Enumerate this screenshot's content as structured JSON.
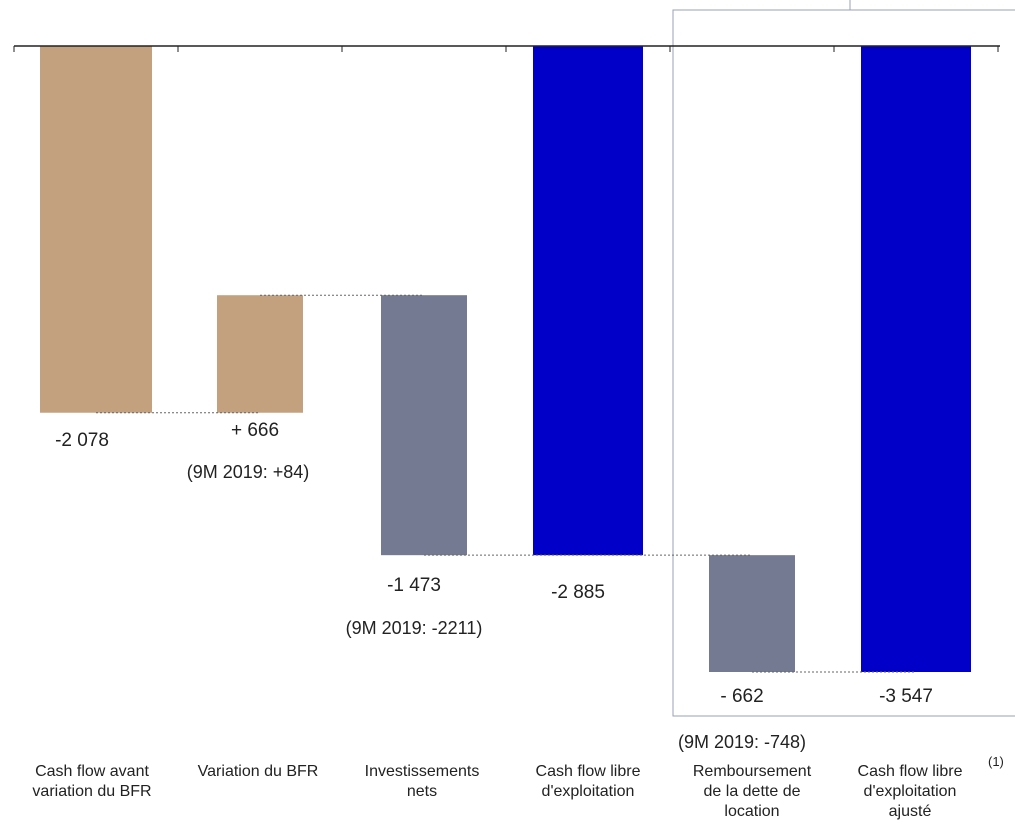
{
  "chart_data": {
    "type": "bar",
    "subtype": "waterfall",
    "title": "",
    "categories": [
      "Cash flow avant\nvariation du BFR",
      "Variation du BFR",
      "Investissements\nnets",
      "Cash flow libre\nd'exploitation",
      "Remboursement\nde la dette de\nlocation",
      "Cash flow libre\nd'exploitation\najusté"
    ],
    "bars": [
      {
        "start": 0,
        "end": -2078,
        "kind": "component",
        "value_label": "-2 078",
        "reference_label": "",
        "color": "#c4a17e"
      },
      {
        "start": -2078,
        "end": -1412,
        "kind": "component",
        "value_label": "+ 666",
        "reference_label": "(9M 2019: +84)",
        "color": "#c4a17e"
      },
      {
        "start": -1412,
        "end": -2885,
        "kind": "component",
        "value_label": "-1 473",
        "reference_label": "(9M 2019: -2211)",
        "color": "#737a91"
      },
      {
        "start": 0,
        "end": -2885,
        "kind": "total",
        "value_label": "-2 885",
        "reference_label": "",
        "color": "#0000c8"
      },
      {
        "start": -2885,
        "end": -3547,
        "kind": "component",
        "value_label": "- 662",
        "reference_label": "(9M 2019: -748)",
        "color": "#737a91"
      },
      {
        "start": 0,
        "end": -3547,
        "kind": "total",
        "value_label": "-3 547",
        "reference_label": "",
        "color": "#0000c8"
      }
    ],
    "ylim": [
      -3547,
      0
    ],
    "grid": false,
    "legend": "none",
    "highlight_box_categories": [
      4,
      5
    ],
    "footnote_marker": "(1)"
  }
}
